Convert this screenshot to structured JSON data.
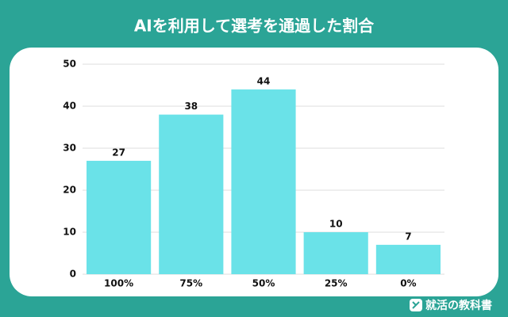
{
  "chart_data": {
    "type": "bar",
    "title": "AIを利用して選考を通過した割合",
    "categories": [
      "100%",
      "75%",
      "50%",
      "25%",
      "0%"
    ],
    "values": [
      27,
      38,
      44,
      10,
      7
    ],
    "color": "#6ae2e8",
    "ylim": [
      0,
      50
    ],
    "yticks": [
      0,
      10,
      20,
      30,
      40,
      50
    ],
    "grid": true
  },
  "footer": {
    "brand": "就活の教科書"
  }
}
